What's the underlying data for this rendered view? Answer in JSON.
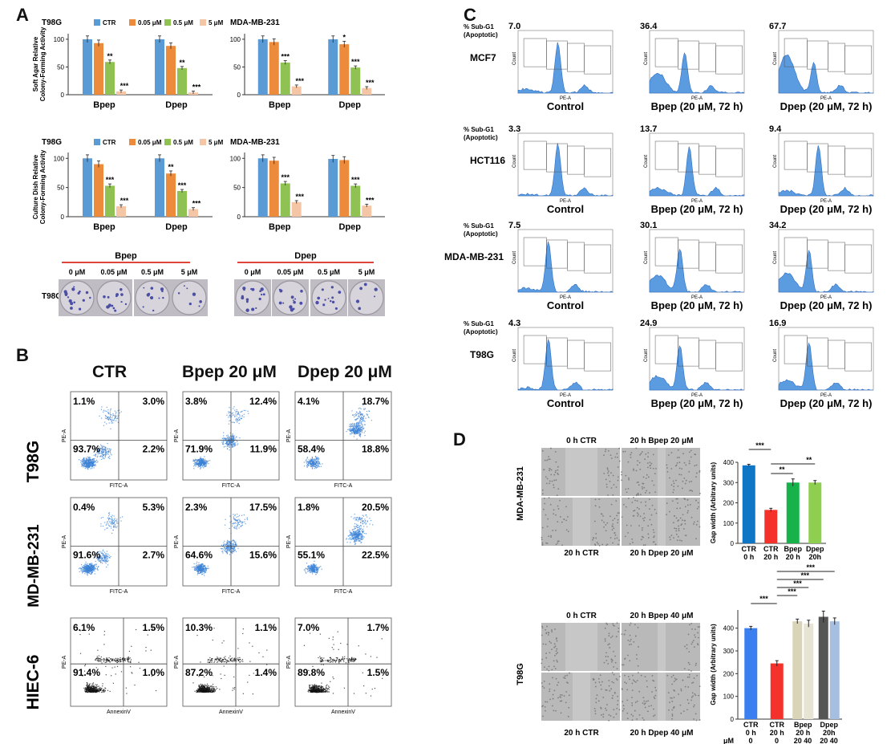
{
  "panels": {
    "a": "A",
    "b": "B",
    "c": "C",
    "d": "D"
  },
  "colors": {
    "ctr": "#5a9bd5",
    "c005": "#ed8b3c",
    "c05": "#8fc253",
    "c5": "#f5c6a5",
    "dot_blue": "#3b82d6",
    "flow_fill": "#5b9be0"
  },
  "panel_a": {
    "legend": [
      "CTR",
      "0.05 μM",
      "0.5 μM",
      "5 μM"
    ],
    "cell_t98g": "T98G",
    "cell_mda": "MDA-MB-231",
    "ylabel_soft": [
      "Soft Agar Relative",
      "Colony-Forming Activity"
    ],
    "ylabel_dish": [
      "Culture Dish Relative",
      "Colony-Forming Activity"
    ],
    "groups": [
      "Bpep",
      "Dpep"
    ],
    "yticks": [
      "0",
      "50",
      "100"
    ],
    "chart_data": [
      {
        "type": "bar",
        "title": "T98G soft agar",
        "categories": [
          "Bpep",
          "Dpep"
        ],
        "series": [
          {
            "name": "CTR",
            "values": [
              100,
              100
            ]
          },
          {
            "name": "0.05 μM",
            "values": [
              93,
              88
            ]
          },
          {
            "name": "0.5 μM",
            "values": [
              59,
              48
            ]
          },
          {
            "name": "5 μM",
            "values": [
              6,
              4
            ]
          }
        ],
        "stars": [
          [
            "",
            "",
            "**",
            "***"
          ],
          [
            "",
            "",
            "**",
            "***"
          ]
        ],
        "ylim": [
          0,
          110
        ]
      },
      {
        "type": "bar",
        "title": "MDA-MB-231 soft agar",
        "categories": [
          "Bpep",
          "Dpep"
        ],
        "series": [
          {
            "name": "CTR",
            "values": [
              100,
              100
            ]
          },
          {
            "name": "0.05 μM",
            "values": [
              95,
              91
            ]
          },
          {
            "name": "0.5 μM",
            "values": [
              58,
              49
            ]
          },
          {
            "name": "5 μM",
            "values": [
              15,
              12
            ]
          }
        ],
        "stars": [
          [
            "",
            "",
            "***",
            "***"
          ],
          [
            "",
            "*",
            "***",
            "***"
          ]
        ],
        "ylim": [
          0,
          110
        ]
      },
      {
        "type": "bar",
        "title": "T98G culture dish",
        "categories": [
          "Bpep",
          "Dpep"
        ],
        "series": [
          {
            "name": "CTR",
            "values": [
              100,
              100
            ]
          },
          {
            "name": "0.05 μM",
            "values": [
              90,
              74
            ]
          },
          {
            "name": "0.5 μM",
            "values": [
              53,
              44
            ]
          },
          {
            "name": "5 μM",
            "values": [
              18,
              13
            ]
          }
        ],
        "stars": [
          [
            "",
            "",
            "***",
            "***"
          ],
          [
            "",
            "**",
            "***",
            "***"
          ]
        ],
        "ylim": [
          0,
          110
        ]
      },
      {
        "type": "bar",
        "title": "MDA-MB-231 culture dish",
        "categories": [
          "Bpep",
          "Dpep"
        ],
        "series": [
          {
            "name": "CTR",
            "values": [
              100,
              99
            ]
          },
          {
            "name": "0.05 μM",
            "values": [
              96,
              97
            ]
          },
          {
            "name": "0.5 μM",
            "values": [
              57,
              53
            ]
          },
          {
            "name": "5 μM",
            "values": [
              25,
              19
            ]
          }
        ],
        "stars": [
          [
            "",
            "",
            "***",
            "***"
          ],
          [
            "",
            "",
            "***",
            "***"
          ]
        ],
        "ylim": [
          0,
          110
        ]
      }
    ],
    "dish_header_b": "Bpep",
    "dish_header_d": "Dpep",
    "doses": [
      "0 μM",
      "0.05 μM",
      "0.5 μM",
      "5 μM"
    ],
    "dish_cell": "T98G"
  },
  "panel_b": {
    "columns": [
      "CTR",
      "Bpep 20 μM",
      "Dpep 20 μM"
    ],
    "rows": [
      "T98G",
      "MD-MB-231",
      "HIEC-6"
    ],
    "quadrants": [
      [
        [
          "1.1%",
          "3.0%",
          "93.7%",
          "2.2%"
        ],
        [
          "3.8%",
          "12.4%",
          "71.9%",
          "11.9%"
        ],
        [
          "4.1%",
          "18.7%",
          "58.4%",
          "18.8%"
        ]
      ],
      [
        [
          "0.4%",
          "5.3%",
          "91.6%",
          "2.7%"
        ],
        [
          "2.3%",
          "17.5%",
          "64.6%",
          "15.6%"
        ],
        [
          "1.8%",
          "20.5%",
          "55.1%",
          "22.5%"
        ]
      ],
      [
        [
          "6.1%",
          "1.5%",
          "91.4%",
          "1.0%"
        ],
        [
          "10.3%",
          "1.1%",
          "87.2%",
          "1.4%"
        ],
        [
          "7.0%",
          "1.7%",
          "89.8%",
          "1.5%"
        ]
      ]
    ],
    "xaxis": [
      "FITC-A",
      "FITC-A",
      "FITC-A",
      "FITC-A",
      "FITC-A",
      "FITC-A",
      "AnnexinV",
      "AnnexinV",
      "AnnexinV"
    ],
    "yaxis": "PE-A"
  },
  "panel_c": {
    "subg1": "% Sub-G1",
    "apoptotic": "(Apoptotic)",
    "cells": [
      "MCF7",
      "HCT116",
      "MDA-MB-231",
      "T98G"
    ],
    "conditions": [
      "Control",
      "Bpep (20 μM, 72 h)",
      "Dpep (20 μM, 72 h)"
    ],
    "chart_data": {
      "type": "table",
      "rows": [
        "MCF7",
        "HCT116",
        "MDA-MB-231",
        "T98G"
      ],
      "columns": [
        "Control",
        "Bpep",
        "Dpep"
      ],
      "values": [
        [
          "7.0",
          "36.4",
          "67.7"
        ],
        [
          "3.3",
          "13.7",
          "9.4"
        ],
        [
          "7.5",
          "30.1",
          "34.2"
        ],
        [
          "4.3",
          "24.9",
          "16.9"
        ]
      ]
    },
    "xaxis": "PE-A",
    "yaxis": "Count"
  },
  "panel_d": {
    "mda": {
      "cell": "MDA-MB-231",
      "tl": "0 h CTR",
      "tr": "20 h Bpep 20 μM",
      "bl": "20 h CTR",
      "br": "20 h Dpep 20 μM"
    },
    "t98g": {
      "cell": "T98G",
      "tl": "0 h CTR",
      "tr": "20 h Bpep 40 μM",
      "bl": "20 h CTR",
      "br": "20 h Dpep 40 μM"
    },
    "ylabel": "Gap width (Arbitrary units)",
    "mda_yticks": [
      "0",
      "100",
      "200",
      "300",
      "400"
    ],
    "t98g_yticks": [
      "0",
      "100",
      "200",
      "300",
      "400"
    ],
    "mda_xlabels": [
      [
        "CTR",
        "0 h"
      ],
      [
        "CTR",
        "20 h"
      ],
      [
        "Bpep",
        "20 h"
      ],
      [
        "Dpep",
        "20h"
      ]
    ],
    "t98g_xlabels": [
      [
        "CTR",
        "0 h"
      ],
      [
        "CTR",
        "20 h"
      ],
      [
        "Bpep",
        "20 h"
      ],
      [
        "Dpep",
        "20h"
      ]
    ],
    "t98g_um": "μM",
    "t98g_doses": [
      "0",
      "0",
      "20  40",
      "20  40"
    ],
    "sig": [
      "***",
      "**",
      "**"
    ],
    "chart_data": [
      {
        "type": "bar",
        "title": "MDA-MB-231 gap width",
        "categories": [
          "CTR 0 h",
          "CTR 20 h",
          "Bpep 20 h",
          "Dpep 20h"
        ],
        "values": [
          385,
          165,
          300,
          300
        ],
        "errors": [
          5,
          8,
          18,
          10
        ],
        "colors": [
          "#0f76c5",
          "#f4312a",
          "#17b34a",
          "#8fcf4f"
        ],
        "ylim": [
          0,
          400
        ]
      },
      {
        "type": "bar",
        "title": "T98G gap width",
        "categories": [
          "CTR 0 h",
          "CTR 20 h",
          "Bpep 20 h 20",
          "Bpep 20 h 40",
          "Dpep 20h 20",
          "Dpep 20h 40"
        ],
        "values": [
          400,
          245,
          430,
          420,
          450,
          430
        ],
        "errors": [
          8,
          12,
          10,
          15,
          25,
          15
        ],
        "colors": [
          "#3a7ff0",
          "#f4312a",
          "#d9d3b8",
          "#e8e4d4",
          "#555555",
          "#a6bfe0"
        ],
        "ylim": [
          0,
          480
        ]
      }
    ]
  }
}
